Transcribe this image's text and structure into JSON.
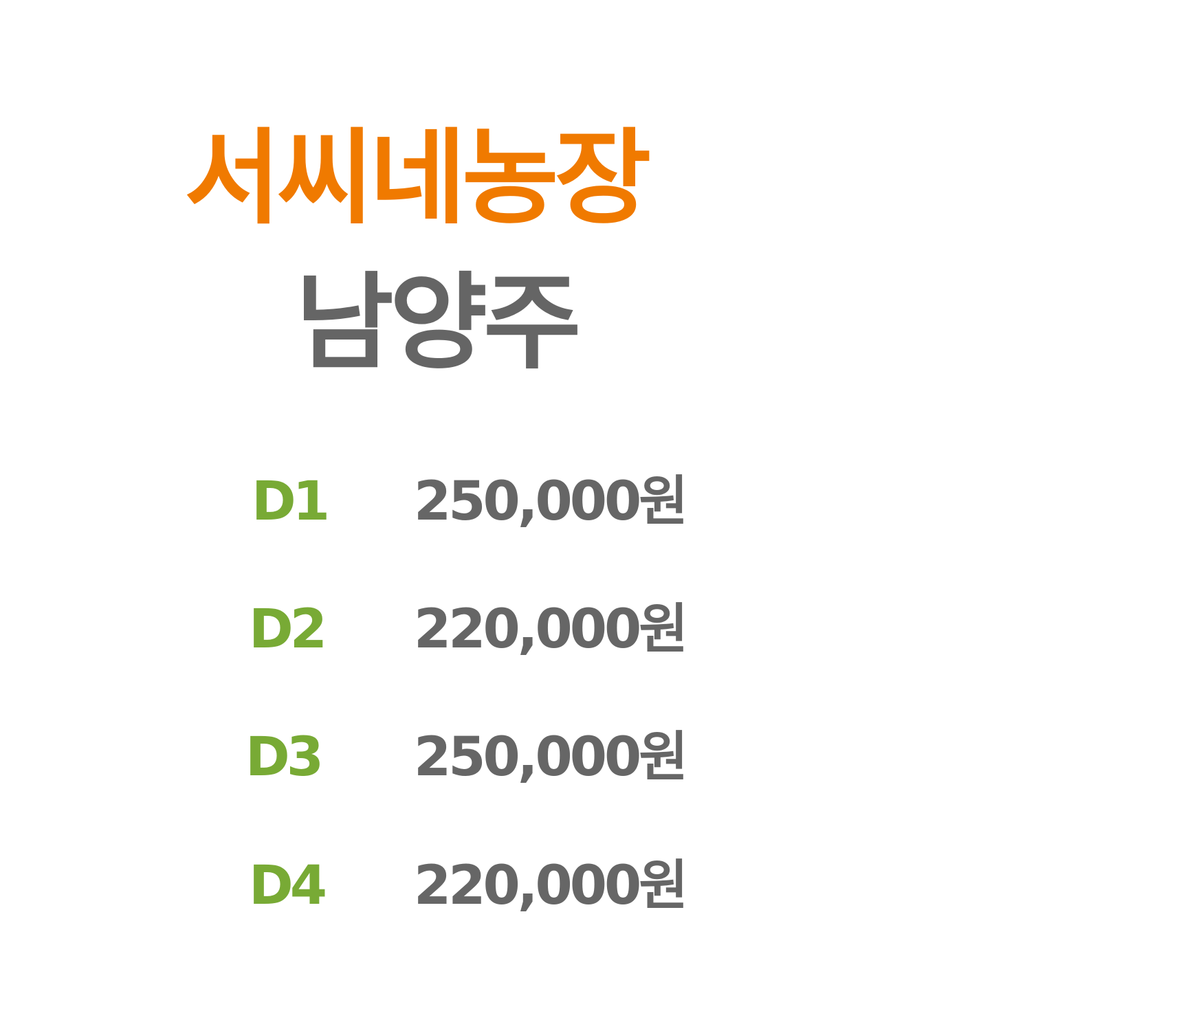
{
  "colors": {
    "title": "#F07A00",
    "subtitle": "#656565",
    "code": "#78AA35",
    "price": "#666666",
    "background": "#FFFFFF"
  },
  "header": {
    "title": "서씨네농장",
    "subtitle": "남양주"
  },
  "prices": [
    {
      "code": "D1",
      "price": "250,000원"
    },
    {
      "code": "D2",
      "price": "220,000원"
    },
    {
      "code": "D3",
      "price": "250,000원"
    },
    {
      "code": "D4",
      "price": "220,000원"
    }
  ]
}
